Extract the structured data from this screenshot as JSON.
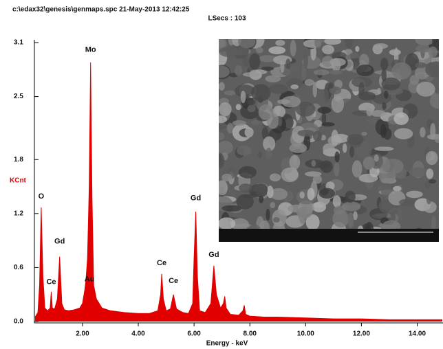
{
  "chart_data": {
    "type": "spectrum",
    "title": "c:\\edax32\\genesis\\genmaps.spc  21-May-2013 12:42:25",
    "subtitle": "LSecs : 103",
    "y_label": "KCnt",
    "x_label": "Energy - keV",
    "color": "#e00000",
    "xlim": [
      0.3,
      14.9
    ],
    "ylim": [
      0,
      3.1
    ],
    "xticks": [
      {
        "value": 2,
        "label": "2.00"
      },
      {
        "value": 4,
        "label": "4.00"
      },
      {
        "value": 6,
        "label": "6.00"
      },
      {
        "value": 8,
        "label": "8.00"
      },
      {
        "value": 10,
        "label": "10.00"
      },
      {
        "value": 12,
        "label": "12.00"
      },
      {
        "value": 14,
        "label": "14.00"
      }
    ],
    "yticks": [
      {
        "value": 0,
        "label": "0.0"
      },
      0.6,
      1.2,
      1.8,
      2.5,
      3.1
    ],
    "x": [
      0.3,
      0.4,
      0.46,
      0.52,
      0.58,
      0.65,
      0.75,
      0.84,
      0.88,
      0.92,
      1.0,
      1.1,
      1.18,
      1.26,
      1.35,
      1.5,
      1.7,
      1.9,
      2.0,
      2.08,
      2.12,
      2.18,
      2.24,
      2.29,
      2.34,
      2.4,
      2.5,
      2.7,
      3.0,
      3.5,
      4.0,
      4.4,
      4.7,
      4.8,
      4.84,
      4.9,
      5.0,
      5.15,
      5.26,
      5.37,
      5.6,
      5.8,
      5.95,
      6.0,
      6.06,
      6.12,
      6.2,
      6.4,
      6.6,
      6.71,
      6.8,
      6.95,
      7.05,
      7.1,
      7.15,
      7.3,
      7.6,
      7.75,
      7.8,
      7.85,
      8.0,
      8.5,
      9.0,
      10,
      11,
      12,
      13,
      14,
      14.9
    ],
    "values": [
      0.05,
      0.1,
      0.4,
      1.27,
      0.5,
      0.15,
      0.12,
      0.15,
      0.33,
      0.15,
      0.14,
      0.25,
      0.72,
      0.2,
      0.13,
      0.12,
      0.13,
      0.15,
      0.2,
      0.35,
      0.45,
      0.7,
      1.5,
      2.88,
      1.4,
      0.4,
      0.25,
      0.15,
      0.12,
      0.1,
      0.09,
      0.09,
      0.12,
      0.3,
      0.53,
      0.25,
      0.12,
      0.14,
      0.3,
      0.14,
      0.1,
      0.09,
      0.2,
      0.7,
      1.22,
      0.5,
      0.12,
      0.1,
      0.2,
      0.62,
      0.3,
      0.15,
      0.2,
      0.28,
      0.15,
      0.08,
      0.07,
      0.12,
      0.18,
      0.08,
      0.06,
      0.05,
      0.05,
      0.04,
      0.03,
      0.03,
      0.02,
      0.02,
      0.02
    ],
    "annotations": [
      {
        "text": "O",
        "x": 0.52,
        "y": 1.39
      },
      {
        "text": "Ce",
        "x": 0.88,
        "y": 0.44
      },
      {
        "text": "Gd",
        "x": 1.18,
        "y": 0.89
      },
      {
        "text": "Au",
        "x": 2.25,
        "y": 0.47
      },
      {
        "text": "Mo",
        "x": 2.29,
        "y": 3.02
      },
      {
        "text": "Ce",
        "x": 4.84,
        "y": 0.65
      },
      {
        "text": "Ce",
        "x": 5.26,
        "y": 0.45
      },
      {
        "text": "Gd",
        "x": 6.06,
        "y": 1.37
      },
      {
        "text": "Gd",
        "x": 6.71,
        "y": 0.74
      }
    ]
  }
}
